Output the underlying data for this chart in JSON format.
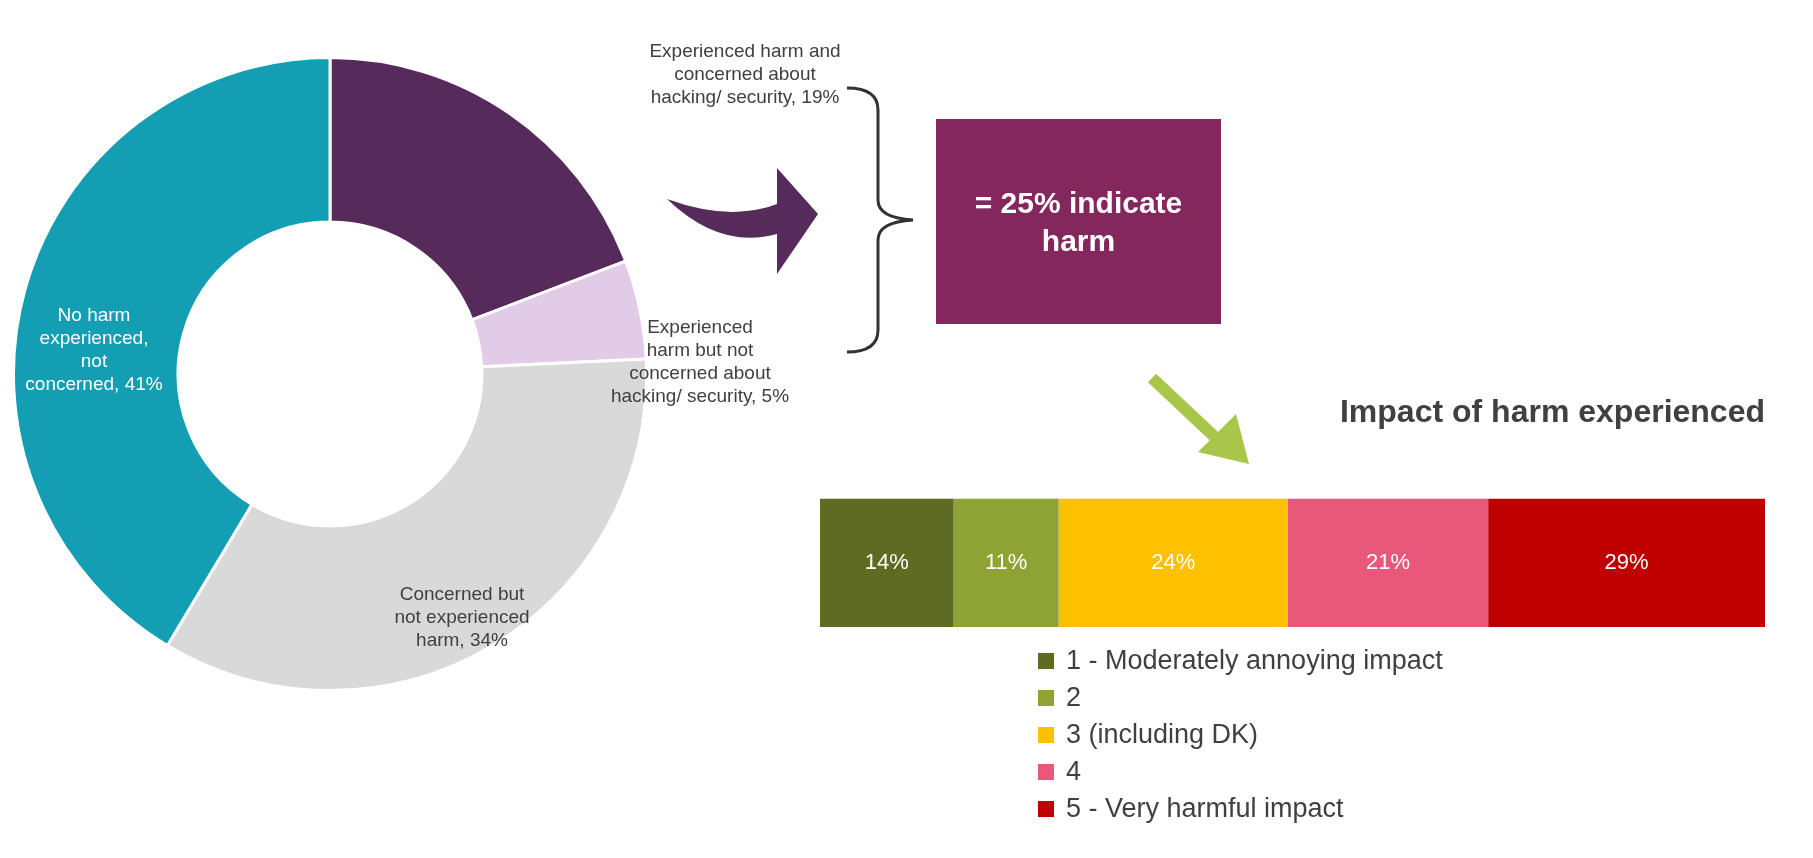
{
  "chart_data": [
    {
      "type": "donut",
      "categories": [
        "Experienced harm and concerned about hacking/ security",
        "Experienced harm but not concerned about hacking/ security",
        "Concerned but not experienced harm",
        "No harm experienced, not concerned"
      ],
      "values": [
        19,
        5,
        34,
        41
      ],
      "colors": [
        "#562a5a",
        "#e2cbe7",
        "#d9d9d9",
        "#139eb3"
      ],
      "value_labels": [
        "19%",
        "5%",
        "34%",
        "41%"
      ]
    },
    {
      "type": "other",
      "title": "= 25% indicate harm"
    },
    {
      "type": "bar",
      "orientation": "horizontal",
      "stacked": true,
      "title": "Impact of harm experienced",
      "categories": [
        null
      ],
      "legend": "bottom",
      "series": [
        {
          "name": "1 - Moderately annoying impact",
          "color": "#5f6b22",
          "values": [
            14
          ],
          "value_labels": [
            "14%"
          ]
        },
        {
          "name": "2",
          "color": "#8fa335",
          "values": [
            11
          ],
          "value_labels": [
            "11%"
          ]
        },
        {
          "name": "3 (including DK)",
          "color": "#ffc000",
          "values": [
            24
          ],
          "value_labels": [
            "24%"
          ]
        },
        {
          "name": "4",
          "color": "#e9577a",
          "values": [
            21
          ],
          "value_labels": [
            "21%"
          ]
        },
        {
          "name": "5 - Very harmful impact",
          "color": "#c00000",
          "values": [
            29
          ],
          "value_labels": [
            "29%"
          ]
        }
      ]
    }
  ]
}
